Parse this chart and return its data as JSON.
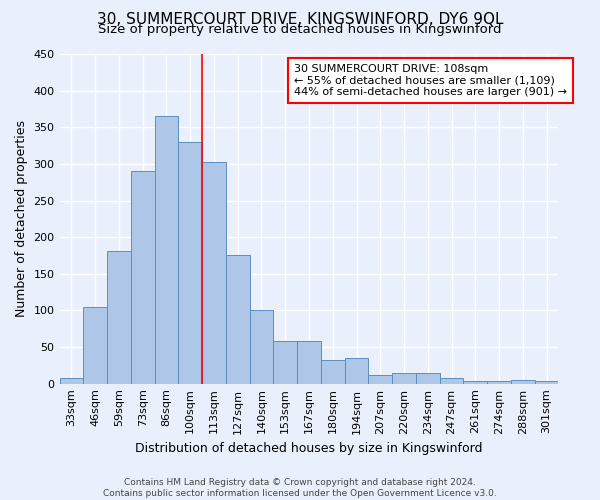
{
  "title": "30, SUMMERCOURT DRIVE, KINGSWINFORD, DY6 9QL",
  "subtitle": "Size of property relative to detached houses in Kingswinford",
  "xlabel": "Distribution of detached houses by size in Kingswinford",
  "ylabel": "Number of detached properties",
  "footer_line1": "Contains HM Land Registry data © Crown copyright and database right 2024.",
  "footer_line2": "Contains public sector information licensed under the Open Government Licence v3.0.",
  "categories": [
    "33sqm",
    "46sqm",
    "59sqm",
    "73sqm",
    "86sqm",
    "100sqm",
    "113sqm",
    "127sqm",
    "140sqm",
    "153sqm",
    "167sqm",
    "180sqm",
    "194sqm",
    "207sqm",
    "220sqm",
    "234sqm",
    "247sqm",
    "261sqm",
    "274sqm",
    "288sqm",
    "301sqm"
  ],
  "values": [
    8,
    104,
    181,
    290,
    365,
    330,
    303,
    176,
    100,
    58,
    58,
    32,
    35,
    12,
    15,
    15,
    8,
    4,
    4,
    5,
    4
  ],
  "bar_color": "#aec6e8",
  "bar_edge_color": "#5a8fc0",
  "vline_x": 5.5,
  "vline_color": "red",
  "annotation_text": "30 SUMMERCOURT DRIVE: 108sqm\n← 55% of detached houses are smaller (1,109)\n44% of semi-detached houses are larger (901) →",
  "annotation_box_color": "white",
  "annotation_box_edge_color": "red",
  "ylim": [
    0,
    450
  ],
  "yticks": [
    0,
    50,
    100,
    150,
    200,
    250,
    300,
    350,
    400,
    450
  ],
  "background_color": "#eaf0fb",
  "grid_color": "white",
  "title_fontsize": 11,
  "subtitle_fontsize": 9.5,
  "axis_label_fontsize": 9,
  "tick_fontsize": 8,
  "annotation_fontsize": 8,
  "footer_fontsize": 6.5
}
